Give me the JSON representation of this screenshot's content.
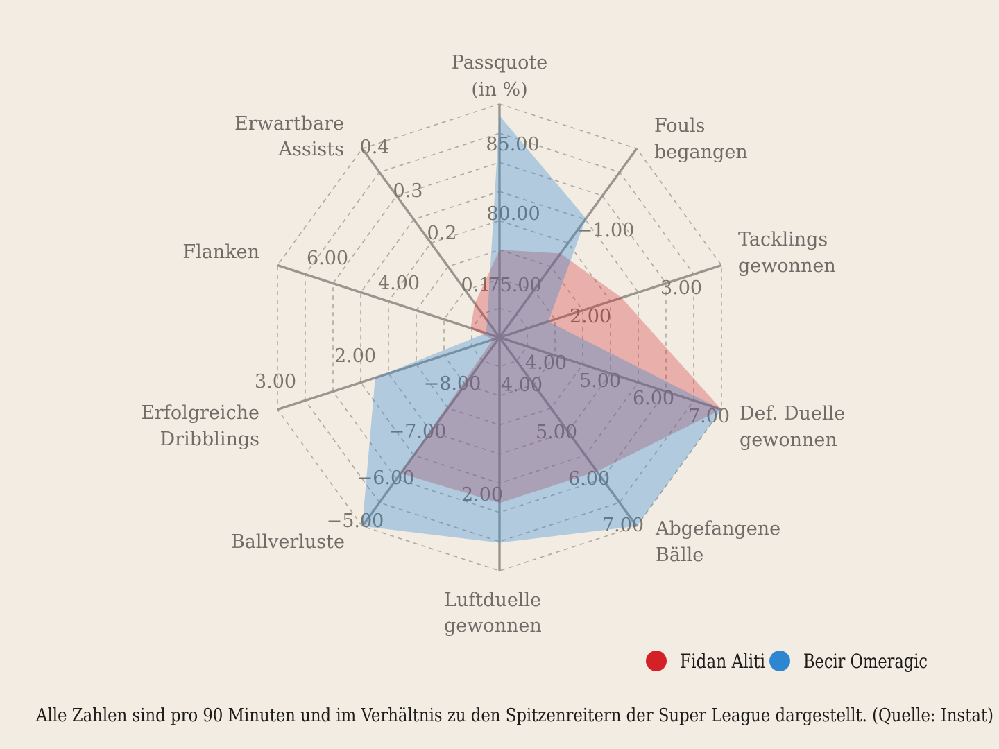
{
  "chart_data": {
    "type": "radar",
    "rings": 8,
    "grid": "dashed-decagon",
    "legend_position": "bottom-right",
    "axes": [
      {
        "label_lines": [
          "Passquote",
          "(in %)"
        ],
        "ticks": [
          "75.00",
          "80.00",
          "85.00"
        ]
      },
      {
        "label_lines": [
          "Fouls",
          "begangen"
        ],
        "ticks": [
          "−1.00"
        ]
      },
      {
        "label_lines": [
          "Tacklings",
          "gewonnen"
        ],
        "ticks": [
          "2.00",
          "3.00"
        ]
      },
      {
        "label_lines": [
          "Def. Duelle",
          "gewonnen"
        ],
        "ticks": [
          "4.00",
          "5.00",
          "6.00",
          "7.00"
        ]
      },
      {
        "label_lines": [
          "Abgefangene",
          "Bälle"
        ],
        "ticks": [
          "4.00",
          "5.00",
          "6.00",
          "7.00"
        ]
      },
      {
        "label_lines": [
          "Luftduelle",
          "gewonnen"
        ],
        "ticks": [
          "2.00"
        ]
      },
      {
        "label_lines": [
          "Ballverluste"
        ],
        "ticks": [
          "−8.00",
          "−7.00",
          "−6.00",
          "−5.00"
        ]
      },
      {
        "label_lines": [
          "Erfolgreiche",
          "Dribblings"
        ],
        "ticks": [
          "2.00",
          "3.00"
        ]
      },
      {
        "label_lines": [
          "Flanken"
        ],
        "ticks": [
          "4.00",
          "6.00"
        ]
      },
      {
        "label_lines": [
          "Erwartbare",
          "Assists"
        ],
        "ticks": [
          "0.1",
          "0.2",
          "0.3",
          "0.4"
        ]
      }
    ],
    "series": [
      {
        "name": "Fidan Aliti",
        "color": "#d42027",
        "fill_opacity": 0.3,
        "values_fraction": [
          0.375,
          0.445,
          0.55,
          1.0,
          0.71,
          0.71,
          0.72,
          0.03,
          0.13,
          0.18
        ],
        "values_est": [
          77.5,
          -1.1,
          2.4,
          7.0,
          5.8,
          1.9,
          -6.1,
          0.4,
          1.0,
          0.07
        ]
      },
      {
        "name": "Becir Omeragic",
        "color": "#2d87d0",
        "fill_opacity": 0.33,
        "values_fraction": [
          0.95,
          0.63,
          0.22,
          1.0,
          1.0,
          0.88,
          1.0,
          0.56,
          0.06,
          0.09
        ],
        "values_est": [
          89.0,
          -0.75,
          1.5,
          7.0,
          7.0,
          2.4,
          -5.0,
          1.9,
          0.5,
          0.04
        ]
      }
    ]
  },
  "caption": "Alle Zahlen sind pro 90 Minuten und im Verhältnis zu den Spitzenreitern der Super League dargestellt. (Quelle: Instat)",
  "colors": {
    "background": "#f2ece3",
    "spoke": "#9a968f",
    "ring": "#a8a199",
    "tick_text": "#7a7469",
    "title_text": "#6f6b66",
    "text_dark": "#1d1c1a"
  }
}
